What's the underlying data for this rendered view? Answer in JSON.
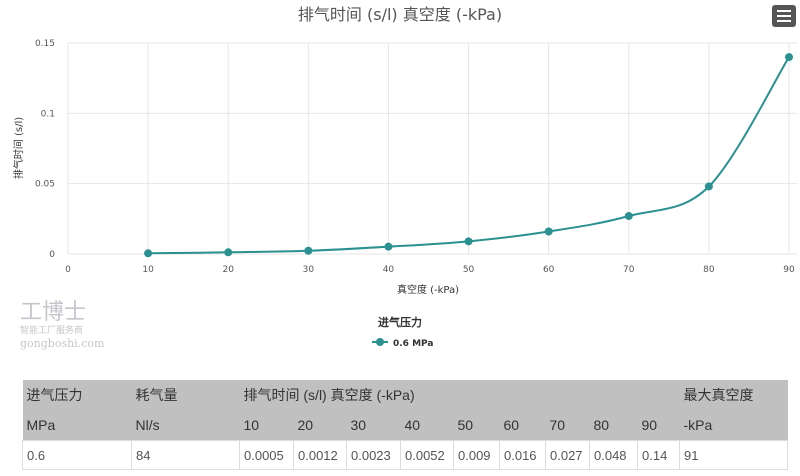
{
  "chart_data": {
    "type": "line",
    "title": "排气时间 (s/l) 真空度 (-kPa)",
    "xlabel": "真空度 (-kPa)",
    "ylabel": "排气时间 (s/l)",
    "xlim": [
      0,
      90
    ],
    "ylim": [
      0,
      0.15
    ],
    "x_ticks": [
      "0",
      "10",
      "20",
      "30",
      "40",
      "50",
      "60",
      "70",
      "80",
      "90"
    ],
    "y_ticks": [
      "0",
      "0.05",
      "0.1",
      "0.15"
    ],
    "grid": true,
    "legend_title": "进气压力",
    "legend_position": "bottom-center",
    "series": [
      {
        "name": "0.6 MPa",
        "color": "#2a9090",
        "x": [
          10,
          20,
          30,
          40,
          50,
          60,
          70,
          80,
          90
        ],
        "values": [
          0.0005,
          0.0012,
          0.0023,
          0.0052,
          0.009,
          0.016,
          0.027,
          0.048,
          0.14
        ]
      }
    ]
  },
  "table": {
    "header1": [
      "进气压力",
      "耗气量",
      "排气时间 (s/l) 真空度 (-kPa)",
      "最大真空度"
    ],
    "header2": [
      "MPa",
      "Nl/s",
      "10",
      "20",
      "30",
      "40",
      "50",
      "60",
      "70",
      "80",
      "90",
      "-kPa"
    ],
    "row": [
      "0.6",
      "84",
      "0.0005",
      "0.0012",
      "0.0023",
      "0.0052",
      "0.009",
      "0.016",
      "0.027",
      "0.048",
      "0.14",
      "91"
    ]
  },
  "watermark": {
    "brand": "工博士",
    "slogan": "智能工厂服务商",
    "site": "gongboshi.com"
  }
}
